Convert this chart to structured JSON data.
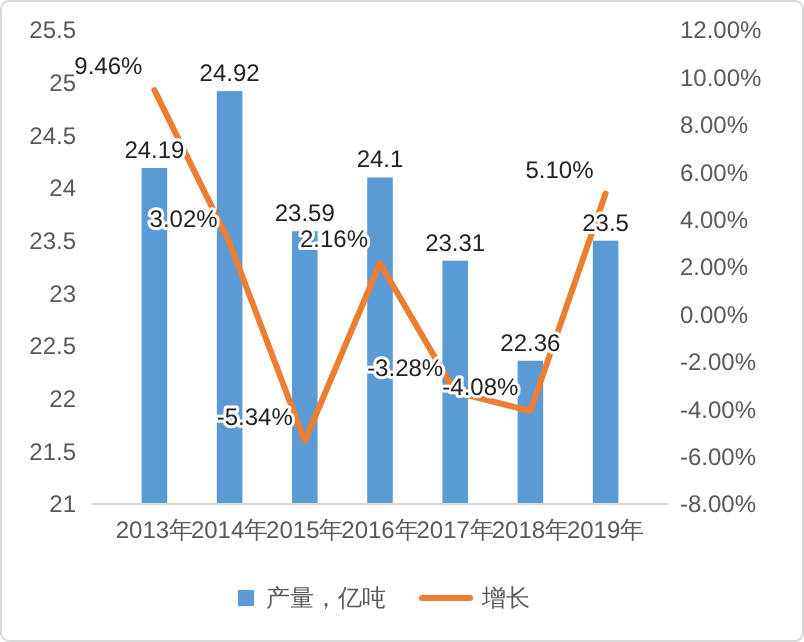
{
  "chart_data": {
    "type": "bar",
    "categories": [
      "2013年",
      "2014年",
      "2015年",
      "2016年",
      "2017年",
      "2018年",
      "2019年"
    ],
    "series": [
      {
        "name": "产量，亿吨",
        "color": "#5b9bd5",
        "values": [
          24.19,
          24.92,
          23.59,
          24.1,
          23.31,
          22.36,
          23.5
        ],
        "value_labels": [
          "24.19",
          "24.92",
          "23.59",
          "24.1",
          "23.31",
          "22.36",
          "23.5"
        ]
      },
      {
        "name": "增长",
        "type": "line",
        "axis": "y2",
        "color": "#ed7d31",
        "values": [
          9.46,
          3.02,
          -5.34,
          2.16,
          -3.28,
          -4.08,
          5.1
        ],
        "value_labels": [
          "9.46%",
          "3.02%",
          "-5.34%",
          "2.16%",
          "-3.28%",
          "-4.08%",
          "5.10%"
        ]
      }
    ],
    "ylim": [
      21,
      25.5
    ],
    "yticks": [
      21,
      21.5,
      22,
      22.5,
      23,
      23.5,
      24,
      24.5,
      25,
      25.5
    ],
    "y2lim": [
      -8,
      12
    ],
    "y2ticks": [
      {
        "value": -8,
        "label": "-8.00%"
      },
      {
        "value": -6,
        "label": "-6.00%"
      },
      {
        "value": -4,
        "label": "-4.00%"
      },
      {
        "value": -2,
        "label": "-2.00%"
      },
      {
        "value": 0,
        "label": "0.00%"
      },
      {
        "value": 2,
        "label": "2.00%"
      },
      {
        "value": 4,
        "label": "4.00%"
      },
      {
        "value": 6,
        "label": "6.00%"
      },
      {
        "value": 8,
        "label": "8.00%"
      },
      {
        "value": 10,
        "label": "10.00%"
      },
      {
        "value": 12,
        "label": "12.00%"
      }
    ],
    "legend": "bottom",
    "grid": false,
    "marker": "none",
    "line_style": "solid"
  }
}
